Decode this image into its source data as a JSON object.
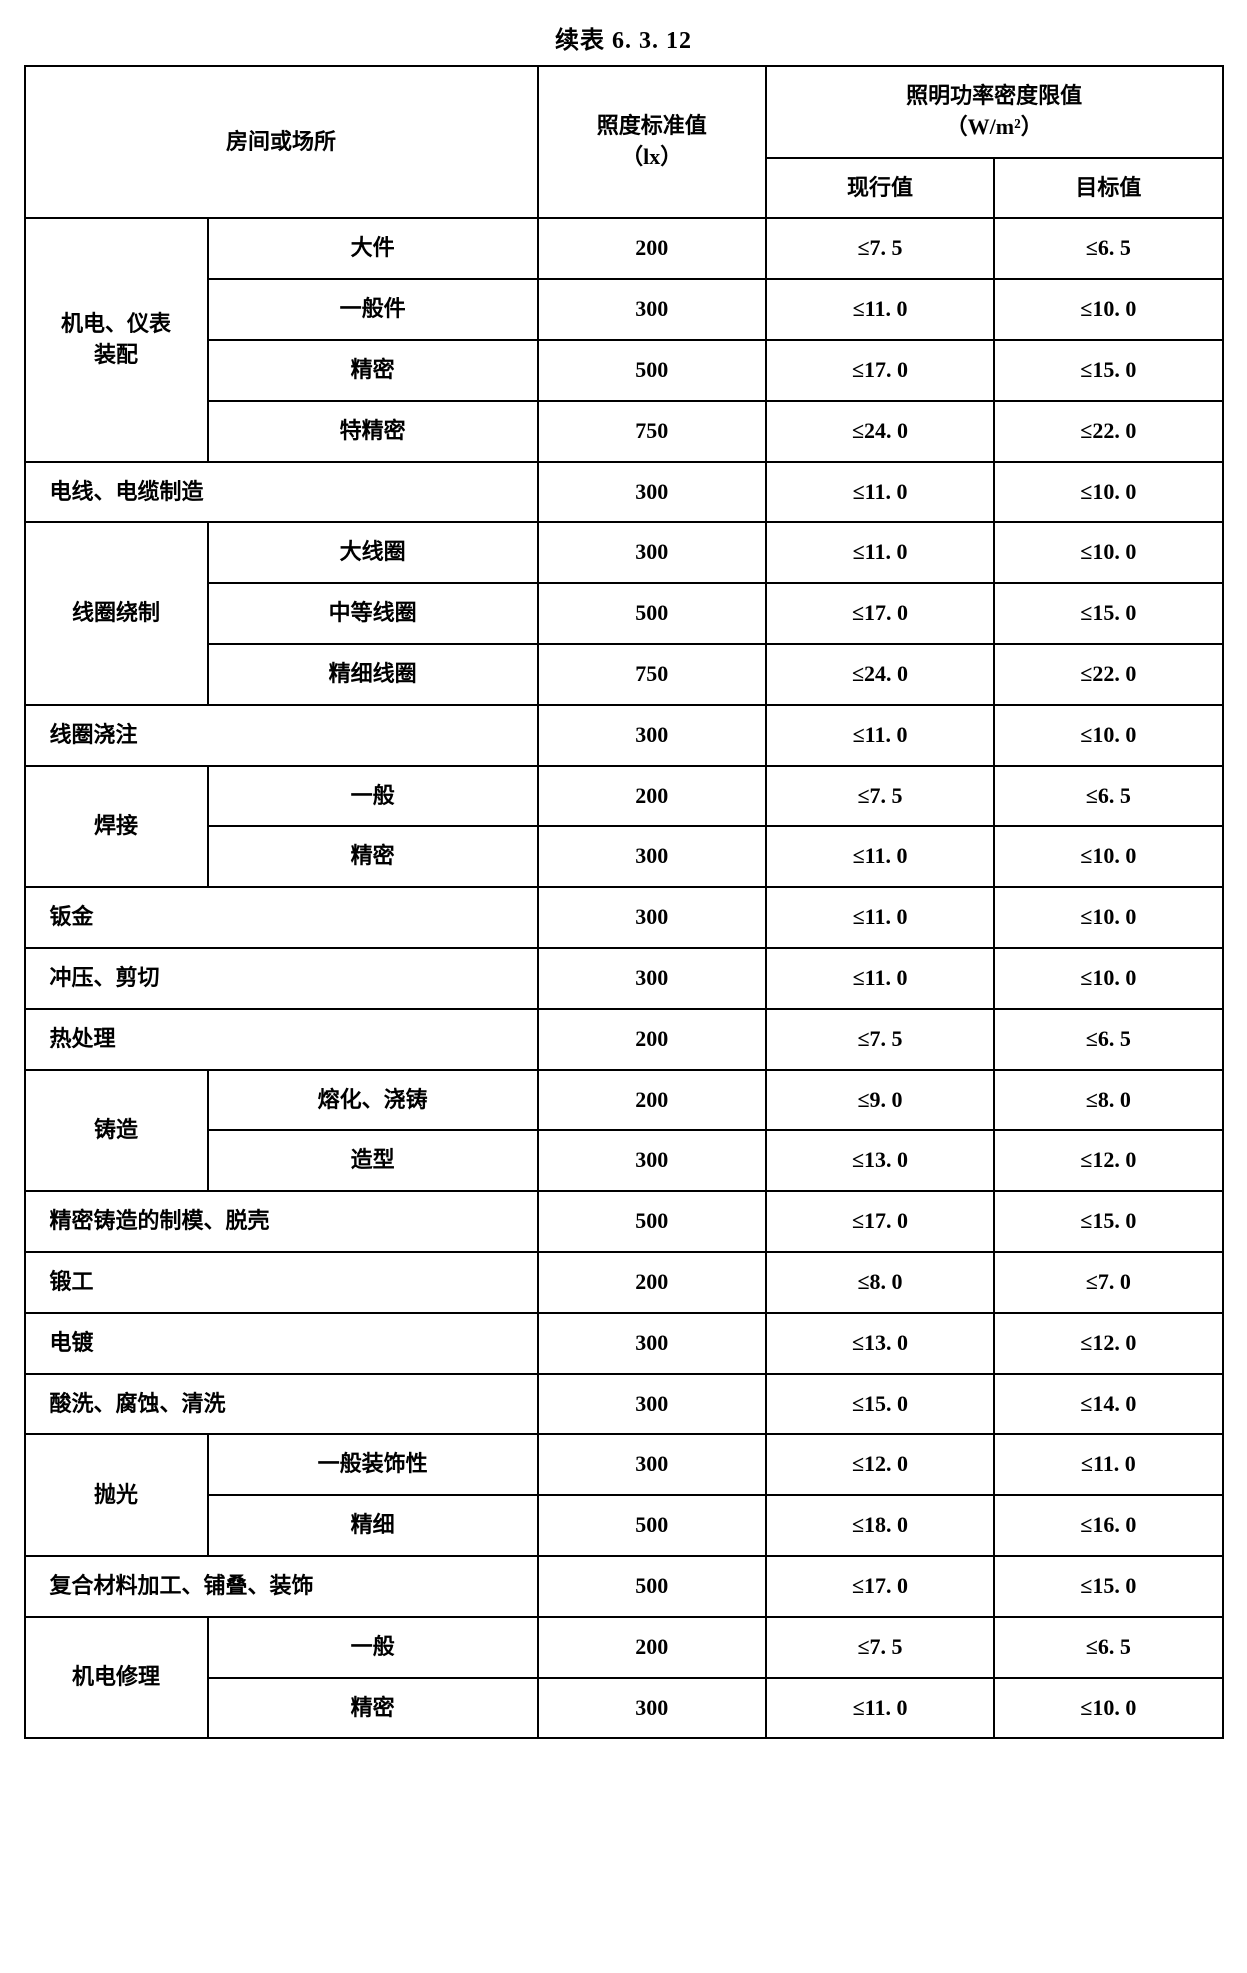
{
  "title": "续表 6. 3. 12",
  "headers": {
    "room": "房间或场所",
    "lx": "照度标准值<br>（lx）",
    "wm2": "照明功率密度限值<br>（W/m²）",
    "current": "现行值",
    "target": "目标值"
  },
  "rows": [
    {
      "group": "机电、仪表<br>装配",
      "sub": "大件",
      "lx": "200",
      "current": "≤7. 5",
      "target": "≤6. 5",
      "rowspan": 4
    },
    {
      "sub": "一般件",
      "lx": "300",
      "current": "≤11. 0",
      "target": "≤10. 0"
    },
    {
      "sub": "精密",
      "lx": "500",
      "current": "≤17. 0",
      "target": "≤15. 0"
    },
    {
      "sub": "特精密",
      "lx": "750",
      "current": "≤24. 0",
      "target": "≤22. 0"
    },
    {
      "single": "电线、电缆制造",
      "lx": "300",
      "current": "≤11. 0",
      "target": "≤10. 0"
    },
    {
      "group": "线圈绕制",
      "sub": "大线圈",
      "lx": "300",
      "current": "≤11. 0",
      "target": "≤10. 0",
      "rowspan": 3
    },
    {
      "sub": "中等线圈",
      "lx": "500",
      "current": "≤17. 0",
      "target": "≤15. 0"
    },
    {
      "sub": "精细线圈",
      "lx": "750",
      "current": "≤24. 0",
      "target": "≤22. 0"
    },
    {
      "single": "线圈浇注",
      "lx": "300",
      "current": "≤11. 0",
      "target": "≤10. 0"
    },
    {
      "group": "焊接",
      "sub": "一般",
      "lx": "200",
      "current": "≤7. 5",
      "target": "≤6. 5",
      "rowspan": 2
    },
    {
      "sub": "精密",
      "lx": "300",
      "current": "≤11. 0",
      "target": "≤10. 0"
    },
    {
      "single": "钣金",
      "lx": "300",
      "current": "≤11. 0",
      "target": "≤10. 0"
    },
    {
      "single": "冲压、剪切",
      "lx": "300",
      "current": "≤11. 0",
      "target": "≤10. 0"
    },
    {
      "single": "热处理",
      "lx": "200",
      "current": "≤7. 5",
      "target": "≤6. 5"
    },
    {
      "group": "铸造",
      "sub": "熔化、浇铸",
      "lx": "200",
      "current": "≤9. 0",
      "target": "≤8. 0",
      "rowspan": 2
    },
    {
      "sub": "造型",
      "lx": "300",
      "current": "≤13. 0",
      "target": "≤12. 0"
    },
    {
      "single": "精密铸造的制模、脱壳",
      "lx": "500",
      "current": "≤17. 0",
      "target": "≤15. 0"
    },
    {
      "single": "锻工",
      "lx": "200",
      "current": "≤8. 0",
      "target": "≤7. 0"
    },
    {
      "single": "电镀",
      "lx": "300",
      "current": "≤13. 0",
      "target": "≤12. 0"
    },
    {
      "single": "酸洗、腐蚀、清洗",
      "lx": "300",
      "current": "≤15. 0",
      "target": "≤14. 0"
    },
    {
      "group": "抛光",
      "sub": "一般装饰性",
      "lx": "300",
      "current": "≤12. 0",
      "target": "≤11. 0",
      "rowspan": 2
    },
    {
      "sub": "精细",
      "lx": "500",
      "current": "≤18. 0",
      "target": "≤16. 0"
    },
    {
      "single": "复合材料加工、铺叠、装饰",
      "lx": "500",
      "current": "≤17. 0",
      "target": "≤15. 0"
    },
    {
      "group": "机电修理",
      "sub": "一般",
      "lx": "200",
      "current": "≤7. 5",
      "target": "≤6. 5",
      "rowspan": 2
    },
    {
      "sub": "精密",
      "lx": "300",
      "current": "≤11. 0",
      "target": "≤10. 0"
    }
  ]
}
